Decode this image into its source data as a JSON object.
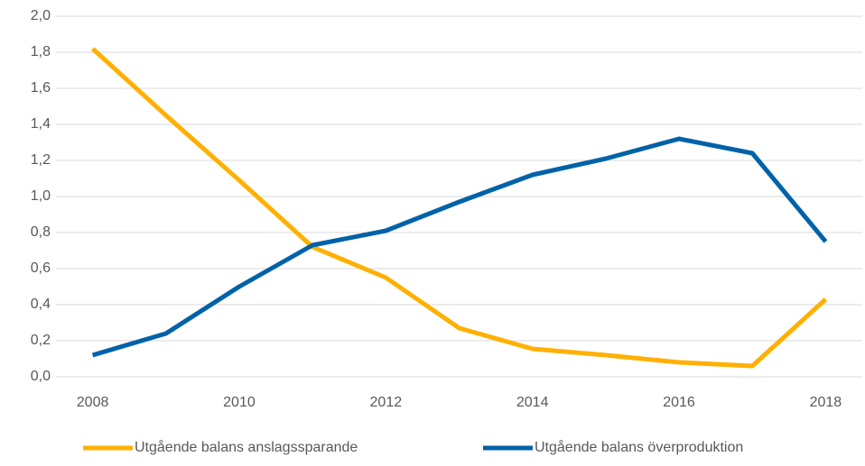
{
  "chart_data": {
    "type": "line",
    "x": [
      2008,
      2009,
      2010,
      2011,
      2012,
      2013,
      2014,
      2015,
      2016,
      2017,
      2018
    ],
    "series": [
      {
        "name": "Utgående balans anslagssparande",
        "color": "#ffb000",
        "values": [
          1.82,
          1.45,
          1.09,
          0.72,
          0.55,
          0.27,
          0.155,
          0.12,
          0.08,
          0.06,
          0.43
        ]
      },
      {
        "name": "Utgående balans överproduktion",
        "color": "#0062a8",
        "values": [
          0.12,
          0.24,
          0.5,
          0.73,
          0.81,
          0.97,
          1.12,
          1.21,
          1.32,
          1.24,
          0.75
        ]
      }
    ],
    "xlim": [
      2007.5,
      2018.5
    ],
    "xticks": [
      2008,
      2010,
      2012,
      2014,
      2016,
      2018
    ],
    "ylim": [
      0,
      2
    ],
    "yticks": [
      {
        "value": 0,
        "label": "0,0"
      },
      {
        "value": 0.2,
        "label": "0,2"
      },
      {
        "value": 0.4,
        "label": "0,4"
      },
      {
        "value": 0.6,
        "label": "0,6"
      },
      {
        "value": 0.8,
        "label": "0,8"
      },
      {
        "value": 1.0,
        "label": "1,0"
      },
      {
        "value": 1.2,
        "label": "1,2"
      },
      {
        "value": 1.4,
        "label": "1,4"
      },
      {
        "value": 1.6,
        "label": "1,6"
      },
      {
        "value": 1.8,
        "label": "1,8"
      },
      {
        "value": 2.0,
        "label": "2,0"
      }
    ],
    "grid": true
  }
}
